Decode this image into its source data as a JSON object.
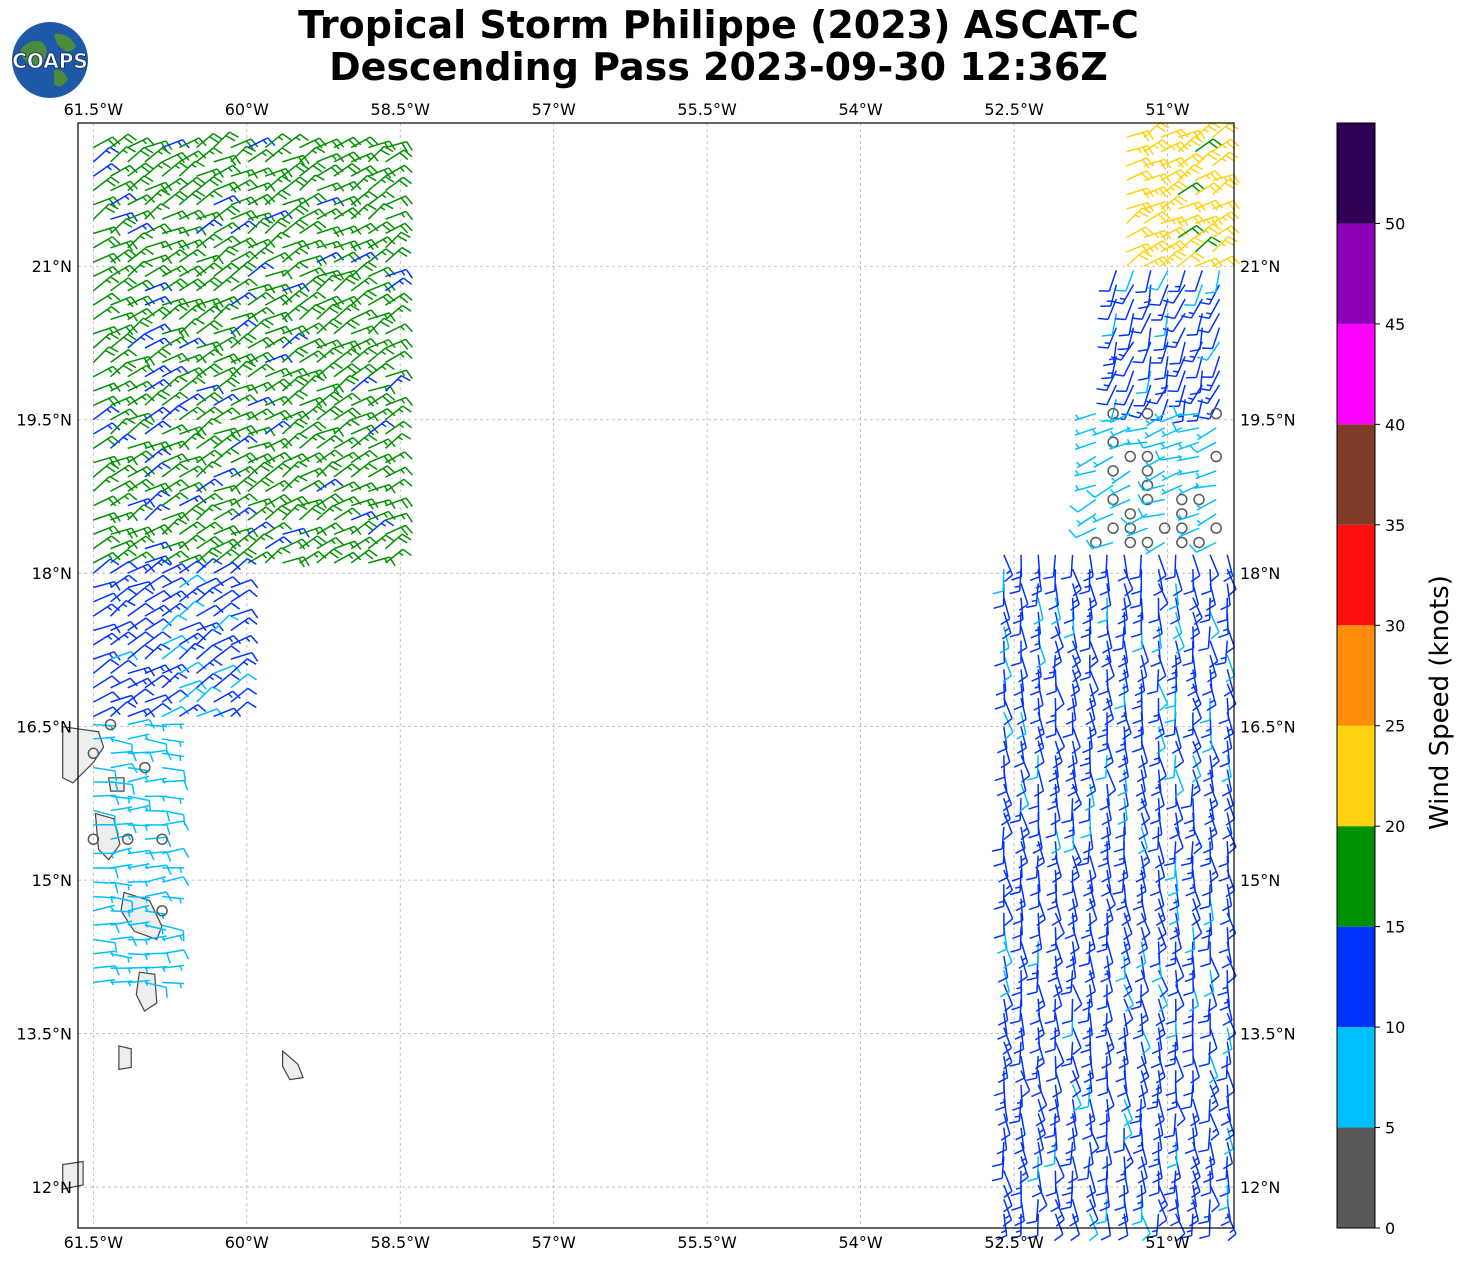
{
  "title_line1": "Tropical Storm Philippe (2023) ASCAT-C",
  "title_line2": "Descending Pass 2023-09-30 12:36Z",
  "logo_text": "COAPS",
  "colorbar_label": "Wind Speed (knots)",
  "map": {
    "lon_range": [
      -61.65,
      -50.35
    ],
    "lat_range": [
      11.6,
      22.4
    ],
    "lon_ticks": [
      -61.5,
      -60,
      -58.5,
      -57,
      -55.5,
      -54,
      -52.5,
      -51
    ],
    "lon_tick_labels": [
      "61.5°W",
      "60°W",
      "58.5°W",
      "57°W",
      "55.5°W",
      "54°W",
      "52.5°W",
      "51°W"
    ],
    "lat_ticks": [
      12,
      13.5,
      15,
      16.5,
      18,
      19.5,
      21
    ],
    "lat_tick_labels": [
      "12°N",
      "13.5°N",
      "15°N",
      "16.5°N",
      "18°N",
      "19.5°N",
      "21°N"
    ],
    "grid": true
  },
  "colorbar": {
    "ticks": [
      0,
      5,
      10,
      15,
      20,
      25,
      30,
      35,
      40,
      45,
      50
    ],
    "bins": [
      {
        "min": 0,
        "max": 5,
        "color": "#595959"
      },
      {
        "min": 5,
        "max": 10,
        "color": "#00bfff"
      },
      {
        "min": 10,
        "max": 15,
        "color": "#0033ff"
      },
      {
        "min": 15,
        "max": 20,
        "color": "#009100"
      },
      {
        "min": 20,
        "max": 25,
        "color": "#ffd20f"
      },
      {
        "min": 25,
        "max": 30,
        "color": "#ff8c0a"
      },
      {
        "min": 30,
        "max": 35,
        "color": "#ff0f0f"
      },
      {
        "min": 35,
        "max": 40,
        "color": "#7f3c28"
      },
      {
        "min": 40,
        "max": 45,
        "color": "#ff00ff"
      },
      {
        "min": 45,
        "max": 50,
        "color": "#8c00b9"
      },
      {
        "min": 50,
        "max": 55,
        "color": "#2d0055"
      }
    ]
  },
  "wind_regions": [
    {
      "name": "west-swath-north",
      "lon": [
        -61.5,
        -58.6
      ],
      "lat": [
        18.1,
        22.3
      ],
      "speed_kt": 17,
      "dir_from_deg": 60
    },
    {
      "name": "west-swath-middle",
      "lon": [
        -61.5,
        -60.1
      ],
      "lat": [
        16.6,
        18.1
      ],
      "speed_kt": 12,
      "dir_from_deg": 60
    },
    {
      "name": "west-swath-south",
      "lon": [
        -61.5,
        -60.7
      ],
      "lat": [
        14.0,
        16.6
      ],
      "speed_kt": 7,
      "dir_from_deg": 90
    },
    {
      "name": "east-swath-north",
      "lon": [
        -51.4,
        -50.4
      ],
      "lat": [
        21.0,
        22.3
      ],
      "speed_kt": 22,
      "dir_from_deg": 60
    },
    {
      "name": "east-swath-upper",
      "lon": [
        -51.5,
        -50.4
      ],
      "lat": [
        19.7,
        21.0
      ],
      "speed_kt": 12,
      "dir_from_deg": 200
    },
    {
      "name": "east-swath-center",
      "lon": [
        -51.7,
        -50.4
      ],
      "lat": [
        18.3,
        19.7
      ],
      "speed_kt": 6,
      "dir_from_deg": 250
    },
    {
      "name": "east-swath-low",
      "lon": [
        -52.6,
        -50.4
      ],
      "lat": [
        11.6,
        18.3
      ],
      "speed_kt": 12,
      "dir_from_deg": 170
    }
  ],
  "islands": [
    {
      "name": "Guadeloupe",
      "lon": -61.55,
      "lat": 16.2
    },
    {
      "name": "Marie-Galante",
      "lon": -61.28,
      "lat": 15.95
    },
    {
      "name": "Dominica",
      "lon": -61.37,
      "lat": 15.45
    },
    {
      "name": "Martinique",
      "lon": -61.02,
      "lat": 14.65
    },
    {
      "name": "St Lucia",
      "lon": -60.97,
      "lat": 13.9
    },
    {
      "name": "St Vincent",
      "lon": -61.2,
      "lat": 13.25
    },
    {
      "name": "Barbados",
      "lon": -59.55,
      "lat": 13.15
    },
    {
      "name": "Grenada",
      "lon": -61.67,
      "lat": 12.1
    }
  ]
}
